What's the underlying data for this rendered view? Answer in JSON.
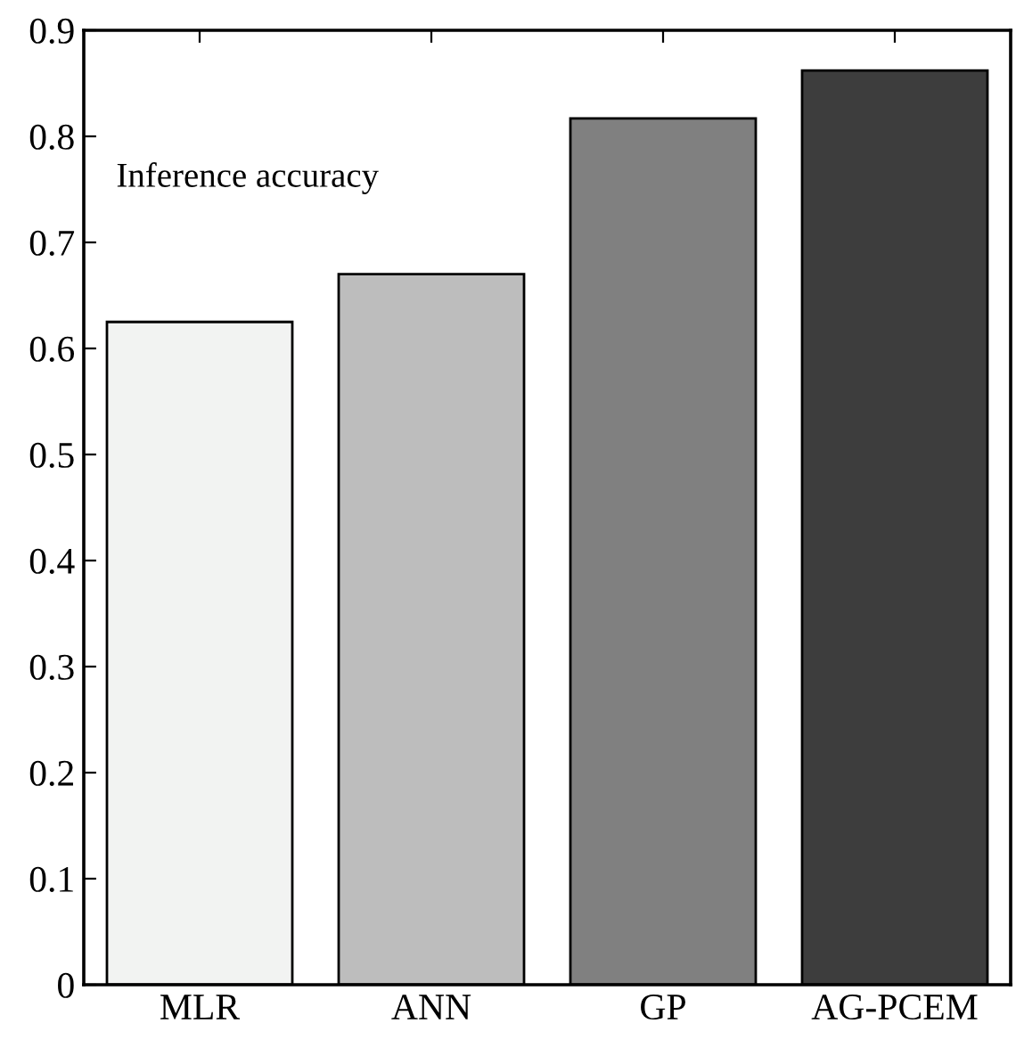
{
  "chart_data": {
    "type": "bar",
    "categories": [
      "MLR",
      "ANN",
      "GP",
      "AG-PCEM"
    ],
    "values": [
      0.625,
      0.67,
      0.817,
      0.862
    ],
    "colors": [
      "#f2f3f2",
      "#bdbdbd",
      "#808080",
      "#3d3d3d"
    ],
    "ylim": [
      0,
      0.9
    ],
    "yticks": [
      0,
      0.1,
      0.2,
      0.3,
      0.4,
      0.5,
      0.6,
      0.7,
      0.8,
      0.9
    ],
    "annotations": [
      "Inference accuracy"
    ],
    "grid": false,
    "legend": false
  }
}
